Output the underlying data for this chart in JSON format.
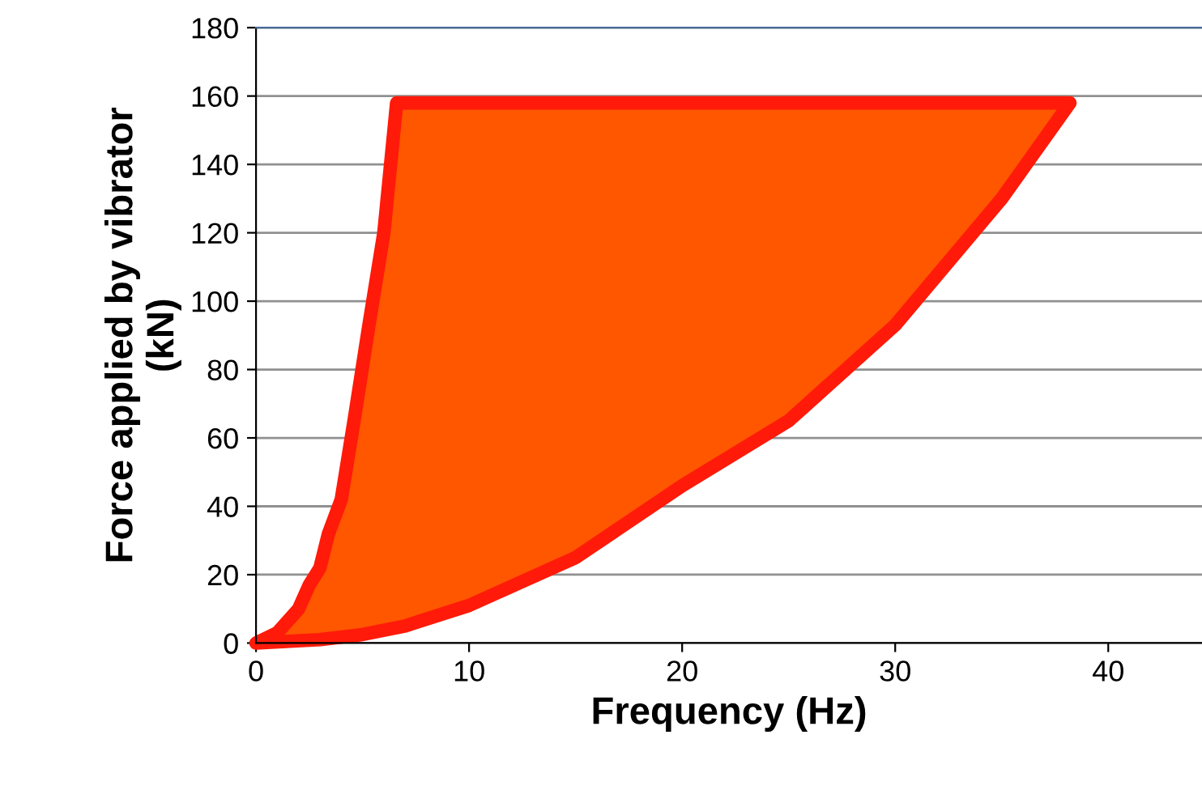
{
  "chart_data": {
    "type": "area",
    "xlabel": "Frequency (Hz)",
    "ylabel": "Force applied by vibrator\n(kN)",
    "xlim": [
      0,
      44.4
    ],
    "xticks": [
      0,
      10,
      20,
      30,
      40
    ],
    "ylim": [
      0,
      180
    ],
    "yticks": [
      0,
      20,
      40,
      60,
      80,
      100,
      120,
      140,
      160,
      180
    ],
    "grid": "y",
    "legend": false,
    "marker": "none",
    "line_style": "solid",
    "series": [
      {
        "color": "#ff1a0a",
        "x": [
          0,
          1,
          2,
          2.5,
          3,
          3.4,
          4,
          4.6,
          5.3,
          6,
          6.6,
          38.2,
          35,
          30,
          25,
          20,
          15,
          10,
          7,
          5,
          3,
          0
        ],
        "values": [
          0,
          3,
          10,
          17,
          22,
          32,
          42,
          65,
          93,
          120,
          158,
          158,
          130,
          93,
          65,
          46,
          25,
          11,
          5,
          2.5,
          1,
          0
        ]
      }
    ]
  }
}
